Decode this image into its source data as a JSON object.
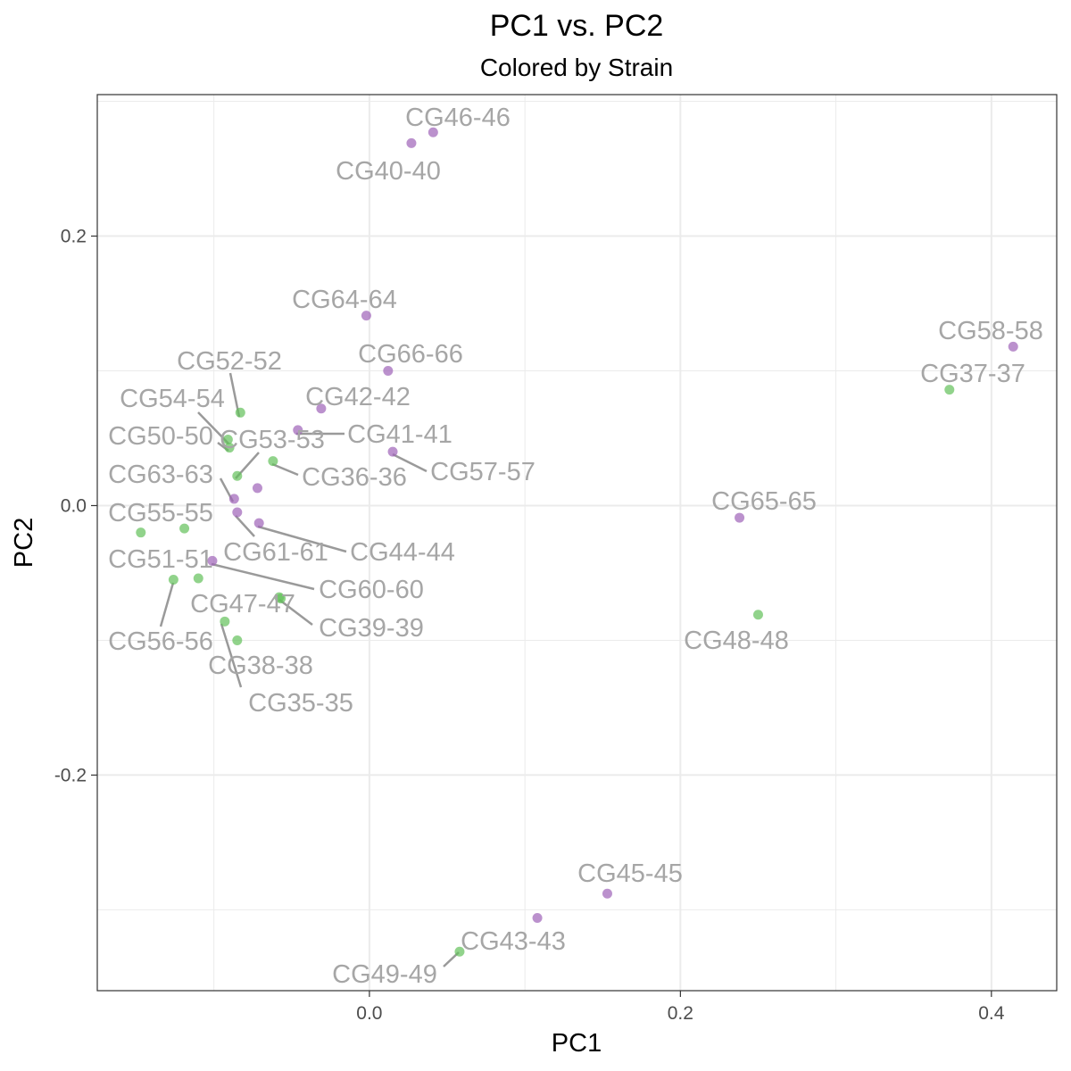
{
  "chart_data": {
    "type": "scatter",
    "title": "PC1 vs. PC2",
    "subtitle": "Colored by Strain",
    "xlabel": "PC1",
    "ylabel": "PC2",
    "xlim": [
      -0.175,
      0.442
    ],
    "ylim": [
      -0.36,
      0.305
    ],
    "x_ticks": [
      0.0,
      0.2,
      0.4
    ],
    "x_tick_labels": [
      "0.0",
      "0.2",
      "0.4"
    ],
    "y_ticks": [
      -0.2,
      0.0,
      0.2
    ],
    "y_tick_labels": [
      "-0.2",
      "0.0",
      "0.2"
    ],
    "grid": true,
    "legend": "none",
    "colors": {
      "group_a": "#9e62b8",
      "group_b": "#62c05a"
    },
    "points": [
      {
        "label": "CG46-46",
        "x": 0.041,
        "y": 0.277,
        "group": "group_a"
      },
      {
        "label": "CG40-40",
        "x": 0.027,
        "y": 0.269,
        "group": "group_a"
      },
      {
        "label": "CG64-64",
        "x": -0.002,
        "y": 0.141,
        "group": "group_a"
      },
      {
        "label": "CG66-66",
        "x": 0.012,
        "y": 0.1,
        "group": "group_a"
      },
      {
        "label": "CG42-42",
        "x": -0.031,
        "y": 0.072,
        "group": "group_a"
      },
      {
        "label": "CG41-41",
        "x": -0.046,
        "y": 0.056,
        "group": "group_a"
      },
      {
        "label": "CG57-57",
        "x": 0.015,
        "y": 0.04,
        "group": "group_a"
      },
      {
        "label": "CG58-58",
        "x": 0.414,
        "y": 0.118,
        "group": "group_a"
      },
      {
        "label": "CG65-65",
        "x": 0.238,
        "y": -0.009,
        "group": "group_a"
      },
      {
        "label": "CG45-45",
        "x": 0.153,
        "y": -0.288,
        "group": "group_a"
      },
      {
        "label": "CG43-43",
        "x": 0.108,
        "y": -0.306,
        "group": "group_a"
      },
      {
        "label": "CG63-63",
        "x": -0.087,
        "y": 0.005,
        "group": "group_a"
      },
      {
        "label": "CG61-61",
        "x": -0.085,
        "y": -0.005,
        "group": "group_a"
      },
      {
        "label": "CG44-44",
        "x": -0.071,
        "y": -0.013,
        "group": "group_a"
      },
      {
        "label": "CG60-60",
        "x": -0.101,
        "y": -0.041,
        "group": "group_a"
      },
      {
        "label": "",
        "x": -0.072,
        "y": 0.013,
        "group": "group_a"
      },
      {
        "label": "CG37-37",
        "x": 0.373,
        "y": 0.086,
        "group": "group_b"
      },
      {
        "label": "CG48-48",
        "x": 0.25,
        "y": -0.081,
        "group": "group_b"
      },
      {
        "label": "CG49-49",
        "x": 0.058,
        "y": -0.331,
        "group": "group_b"
      },
      {
        "label": "CG52-52",
        "x": -0.083,
        "y": 0.069,
        "group": "group_b"
      },
      {
        "label": "CG54-54",
        "x": -0.091,
        "y": 0.049,
        "group": "group_b"
      },
      {
        "label": "CG50-50",
        "x": -0.09,
        "y": 0.043,
        "group": "group_b"
      },
      {
        "label": "CG53-53",
        "x": -0.085,
        "y": 0.022,
        "group": "group_b"
      },
      {
        "label": "CG36-36",
        "x": -0.062,
        "y": 0.033,
        "group": "group_b"
      },
      {
        "label": "CG55-55",
        "x": -0.147,
        "y": -0.02,
        "group": "group_b"
      },
      {
        "label": "",
        "x": -0.119,
        "y": -0.017,
        "group": "group_b"
      },
      {
        "label": "CG51-51",
        "x": -0.11,
        "y": -0.054,
        "group": "group_b"
      },
      {
        "label": "CG56-56",
        "x": -0.126,
        "y": -0.055,
        "group": "group_b"
      },
      {
        "label": "CG47-47",
        "x": -0.058,
        "y": -0.068,
        "group": "group_b"
      },
      {
        "label": "CG39-39",
        "x": -0.057,
        "y": -0.069,
        "group": "group_b"
      },
      {
        "label": "CG38-38",
        "x": -0.093,
        "y": -0.086,
        "group": "group_b"
      },
      {
        "label": "CG35-35",
        "x": -0.085,
        "y": -0.1,
        "group": "group_b"
      }
    ]
  }
}
